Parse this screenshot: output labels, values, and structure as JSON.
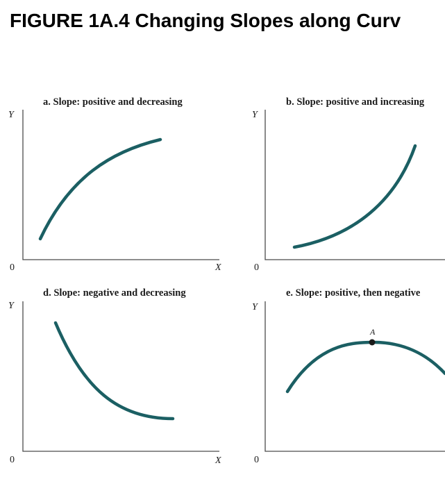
{
  "figure": {
    "title": "FIGURE 1A.4  Changing Slopes along Curv"
  },
  "panels": [
    {
      "title": "a. Slope: positive and decreasing",
      "y_label": "Y",
      "x_label": "X",
      "origin": "0",
      "curve": "positive-decreasing"
    },
    {
      "title": "b. Slope: positive and increasing",
      "y_label": "Y",
      "x_label": "",
      "origin": "0",
      "curve": "positive-increasing"
    },
    {
      "title": "d. Slope: negative and decreasing",
      "y_label": "Y",
      "x_label": "X",
      "origin": "0",
      "curve": "negative-decreasing"
    },
    {
      "title": "e. Slope: positive, then negative",
      "y_label": "Y",
      "x_label": "",
      "origin": "0",
      "curve": "positive-then-negative",
      "point_label": "A"
    }
  ],
  "colors": {
    "curve": "#1b5f63",
    "axis": "#4a4a4a"
  }
}
